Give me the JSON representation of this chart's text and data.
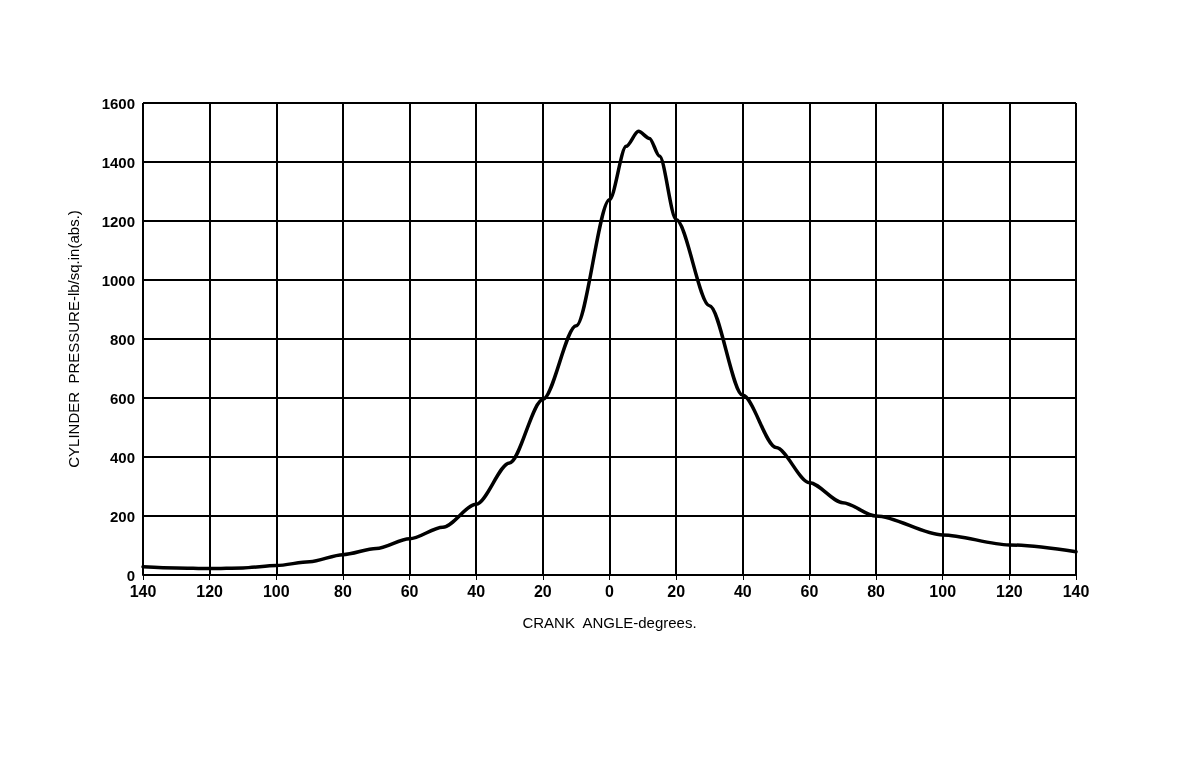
{
  "chart_data": {
    "type": "line",
    "xlabel": "CRANK  ANGLE-degrees.",
    "ylabel": "CYLINDER  PRESSURE-lb/sq.in(abs.)",
    "x": [
      -140,
      -130,
      -120,
      -110,
      -100,
      -90,
      -80,
      -70,
      -60,
      -50,
      -40,
      -30,
      -20,
      -10,
      0,
      5,
      8.7,
      12,
      15,
      20,
      30,
      40,
      50,
      60,
      70,
      80,
      100,
      120,
      140
    ],
    "series": [
      {
        "color": "#000000",
        "values": [
          28,
          24,
          22,
          24,
          32,
          45,
          69,
          90,
          123,
          162,
          240,
          380,
          595,
          845,
          1272,
          1453,
          1504,
          1480,
          1420,
          1205,
          913,
          609,
          432,
          313,
          245,
          200,
          136,
          102,
          79
        ]
      }
    ],
    "xlim": [
      -140,
      140
    ],
    "xticks": [
      {
        "value": -140,
        "label": "140"
      },
      {
        "value": -120,
        "label": "120"
      },
      {
        "value": -100,
        "label": "100"
      },
      {
        "value": -80,
        "label": "80"
      },
      {
        "value": -60,
        "label": "60"
      },
      {
        "value": -40,
        "label": "40"
      },
      {
        "value": -20,
        "label": "20"
      },
      0,
      20,
      40,
      60,
      80,
      100,
      120,
      140
    ],
    "ylim": [
      0,
      1600
    ],
    "yticks": [
      0,
      200,
      400,
      600,
      800,
      1000,
      1200,
      1400,
      1600
    ],
    "grid": true,
    "marker": "none",
    "line_style": "solid"
  }
}
